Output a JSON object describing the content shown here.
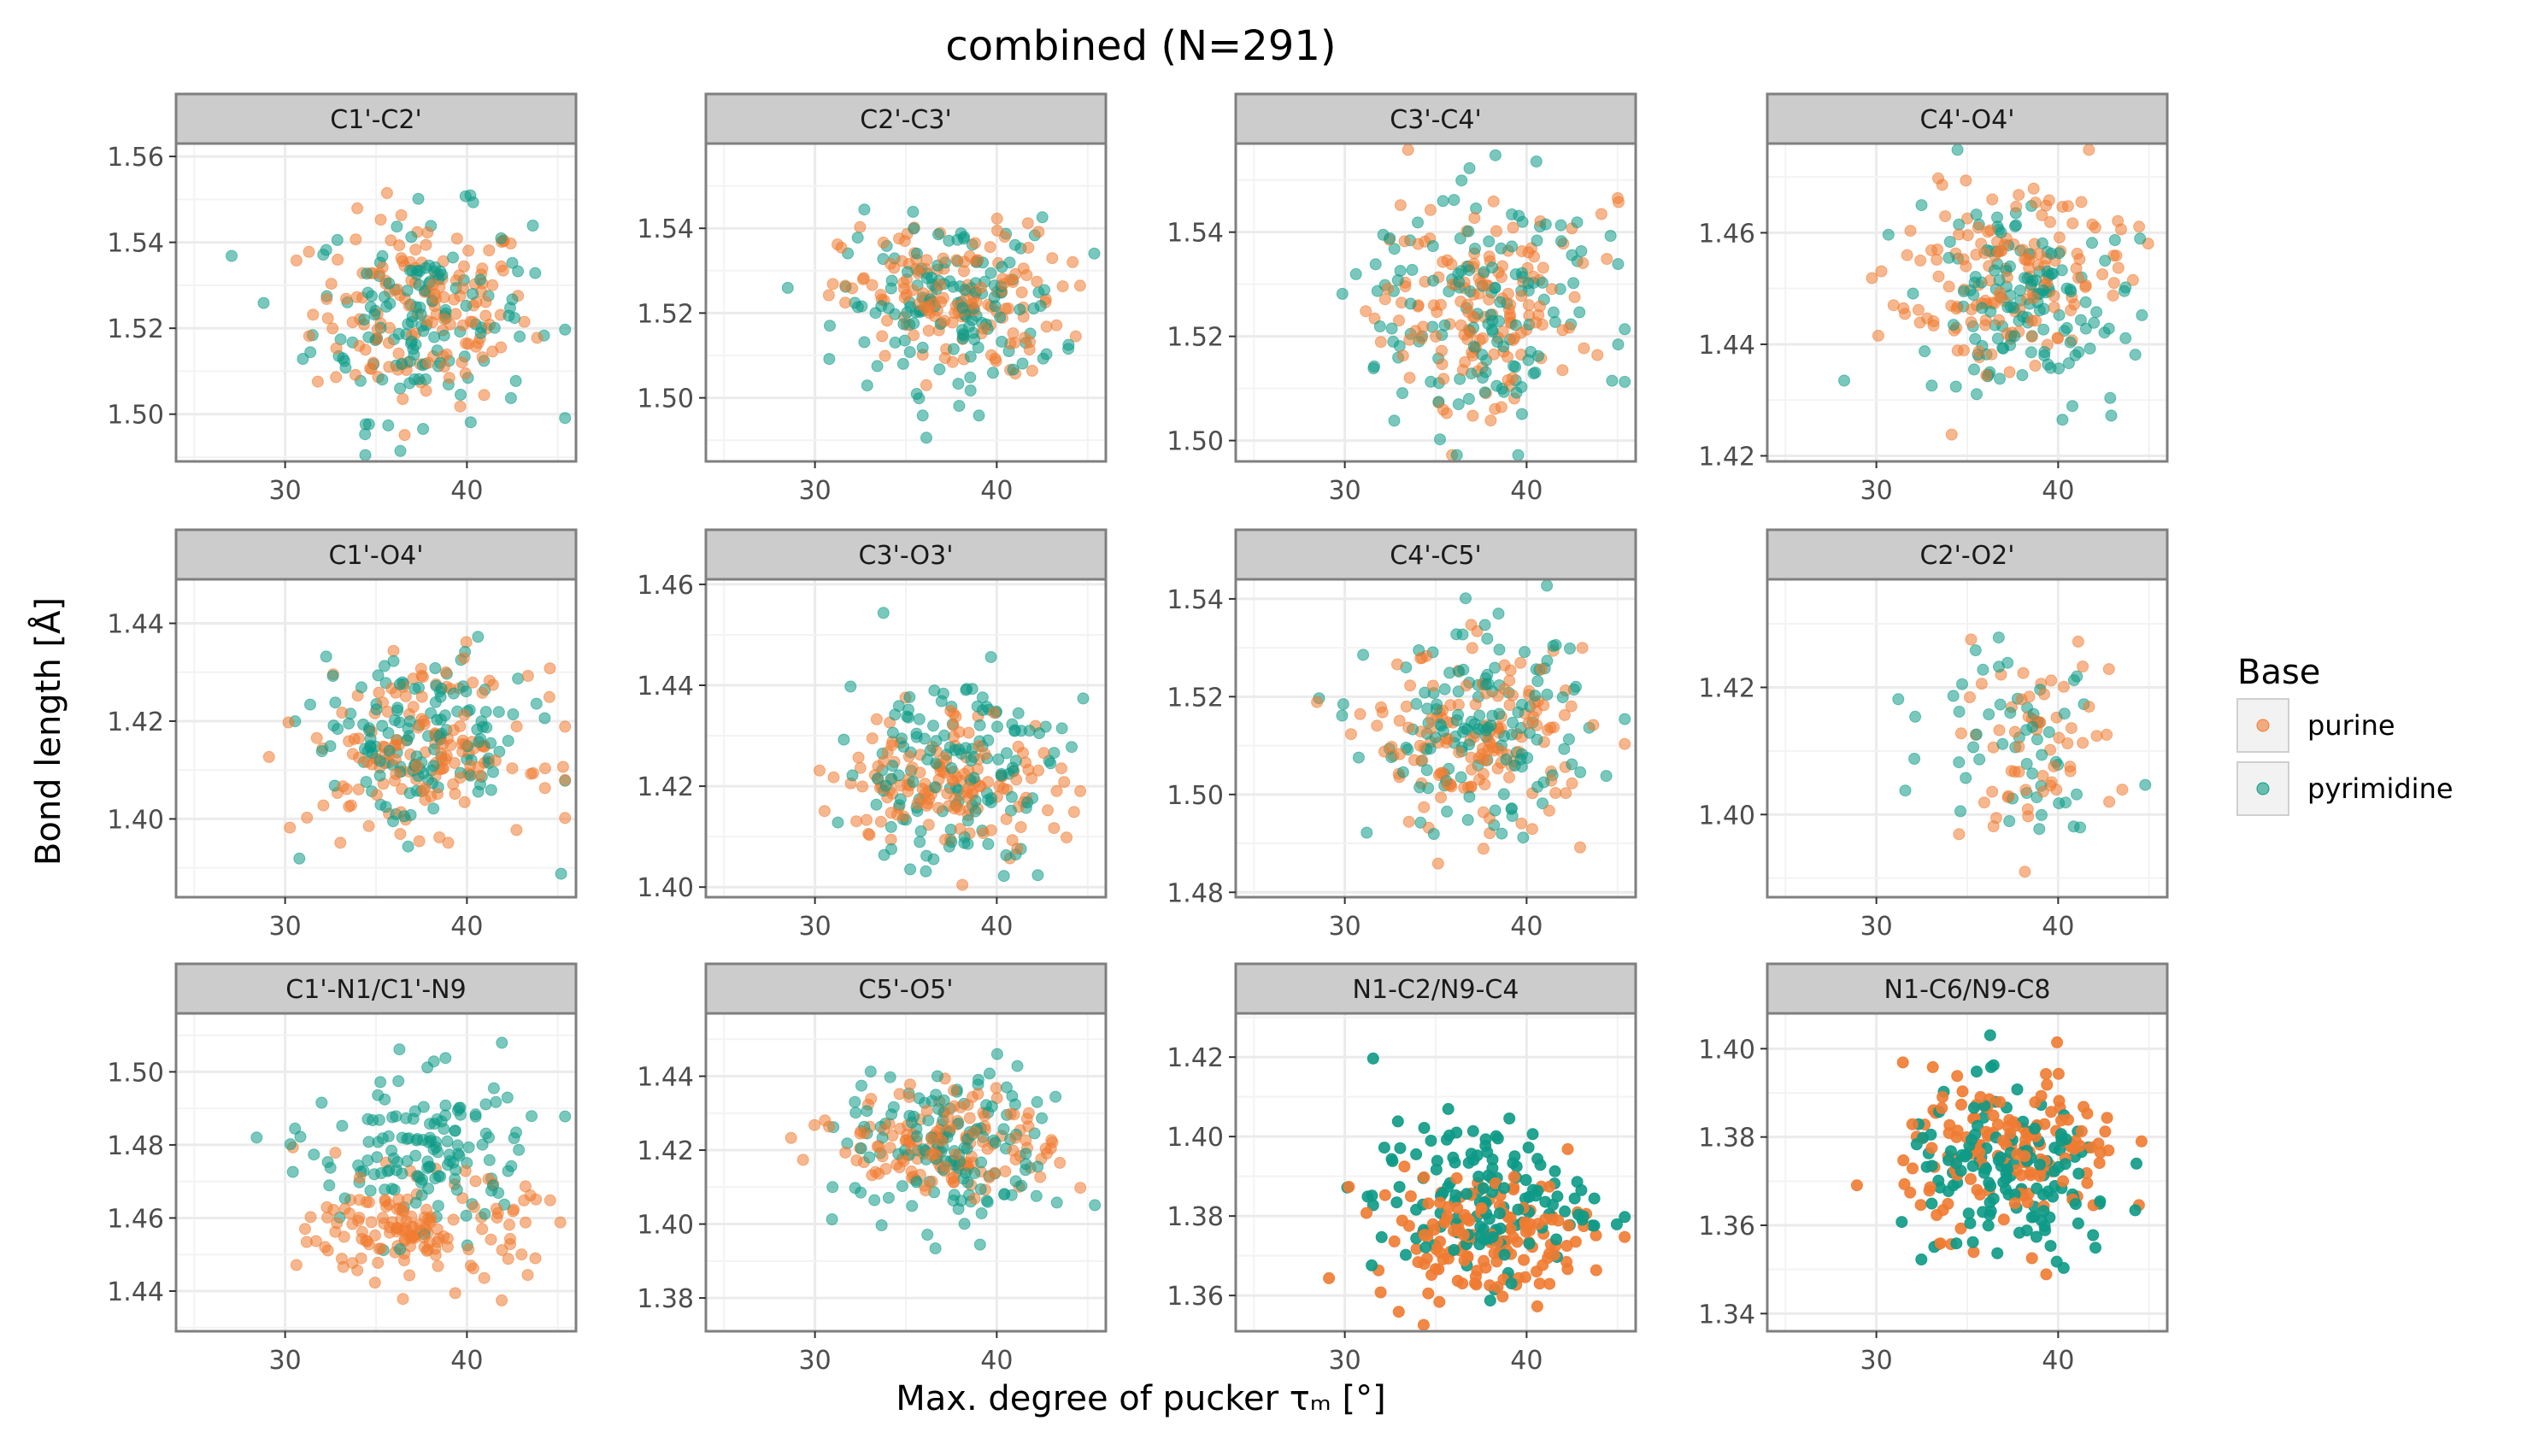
{
  "figure": {
    "title": "combined (N=291)",
    "xlabel": "Max. degree of pucker τₘ [°]",
    "ylabel": "Bond length [Å]"
  },
  "legend": {
    "title": "Base",
    "placement": "right",
    "items": [
      {
        "label": "purine",
        "color": "#f07b32"
      },
      {
        "label": "pyrimidine",
        "color": "#0d9a86"
      }
    ]
  },
  "chart_data": [
    {
      "type": "scatter",
      "title": "C1'-C2'",
      "xlim": [
        24,
        46
      ],
      "xticks": [
        30,
        40
      ],
      "ylim": [
        1.489,
        1.563
      ],
      "yticks": [
        1.5,
        1.52,
        1.54,
        1.56
      ],
      "xcenter": 37.5,
      "xsd": 3.0,
      "series": [
        {
          "name": "purine",
          "n": 150,
          "ycenter": 1.524,
          "ysd": 0.011
        },
        {
          "name": "pyrimidine",
          "n": 141,
          "ycenter": 1.523,
          "ysd": 0.012
        }
      ]
    },
    {
      "type": "scatter",
      "title": "C2'-C3'",
      "xlim": [
        24,
        46
      ],
      "xticks": [
        30,
        40
      ],
      "ylim": [
        1.485,
        1.56
      ],
      "yticks": [
        1.5,
        1.52,
        1.54
      ],
      "xcenter": 37.5,
      "xsd": 3.0,
      "series": [
        {
          "name": "purine",
          "n": 150,
          "ycenter": 1.523,
          "ysd": 0.009
        },
        {
          "name": "pyrimidine",
          "n": 141,
          "ycenter": 1.522,
          "ysd": 0.01
        }
      ]
    },
    {
      "type": "scatter",
      "title": "C3'-C4'",
      "xlim": [
        24,
        46
      ],
      "xticks": [
        30,
        40
      ],
      "ylim": [
        1.496,
        1.557
      ],
      "yticks": [
        1.5,
        1.52,
        1.54
      ],
      "xcenter": 37.5,
      "xsd": 3.0,
      "series": [
        {
          "name": "purine",
          "n": 150,
          "ycenter": 1.526,
          "ysd": 0.01
        },
        {
          "name": "pyrimidine",
          "n": 141,
          "ycenter": 1.526,
          "ysd": 0.011
        }
      ]
    },
    {
      "type": "scatter",
      "title": "C4'-O4'",
      "xlim": [
        24,
        46
      ],
      "xticks": [
        30,
        40
      ],
      "ylim": [
        1.419,
        1.476
      ],
      "yticks": [
        1.42,
        1.44,
        1.46
      ],
      "xcenter": 37.5,
      "xsd": 3.0,
      "series": [
        {
          "name": "purine",
          "n": 150,
          "ycenter": 1.451,
          "ysd": 0.008
        },
        {
          "name": "pyrimidine",
          "n": 141,
          "ycenter": 1.449,
          "ysd": 0.009
        }
      ]
    },
    {
      "type": "scatter",
      "title": "C1'-O4'",
      "xlim": [
        24,
        46
      ],
      "xticks": [
        30,
        40
      ],
      "ylim": [
        1.384,
        1.449
      ],
      "yticks": [
        1.4,
        1.42,
        1.44
      ],
      "xcenter": 37.5,
      "xsd": 3.0,
      "series": [
        {
          "name": "purine",
          "n": 150,
          "ycenter": 1.414,
          "ysd": 0.008
        },
        {
          "name": "pyrimidine",
          "n": 141,
          "ycenter": 1.416,
          "ysd": 0.009
        }
      ]
    },
    {
      "type": "scatter",
      "title": "C3'-O3'",
      "xlim": [
        24,
        46
      ],
      "xticks": [
        30,
        40
      ],
      "ylim": [
        1.398,
        1.461
      ],
      "yticks": [
        1.4,
        1.42,
        1.44,
        1.46
      ],
      "xcenter": 37.5,
      "xsd": 3.0,
      "series": [
        {
          "name": "purine",
          "n": 150,
          "ycenter": 1.421,
          "ysd": 0.007
        },
        {
          "name": "pyrimidine",
          "n": 141,
          "ycenter": 1.424,
          "ysd": 0.01
        }
      ]
    },
    {
      "type": "scatter",
      "title": "C4'-C5'",
      "xlim": [
        24,
        46
      ],
      "xticks": [
        30,
        40
      ],
      "ylim": [
        1.479,
        1.544
      ],
      "yticks": [
        1.48,
        1.5,
        1.52,
        1.54
      ],
      "xcenter": 37.5,
      "xsd": 3.0,
      "series": [
        {
          "name": "purine",
          "n": 150,
          "ycenter": 1.511,
          "ysd": 0.009
        },
        {
          "name": "pyrimidine",
          "n": 141,
          "ycenter": 1.512,
          "ysd": 0.01
        }
      ]
    },
    {
      "type": "scatter",
      "title": "C2'-O2'",
      "xlim": [
        24,
        46
      ],
      "xticks": [
        30,
        40
      ],
      "ylim": [
        1.387,
        1.437
      ],
      "yticks": [
        1.4,
        1.42
      ],
      "xcenter": 38.0,
      "xsd": 2.5,
      "series": [
        {
          "name": "purine",
          "n": 60,
          "ycenter": 1.411,
          "ysd": 0.007
        },
        {
          "name": "pyrimidine",
          "n": 55,
          "ycenter": 1.414,
          "ysd": 0.008
        }
      ]
    },
    {
      "type": "scatter",
      "title": "C1'-N1/C1'-N9",
      "xlim": [
        24,
        46
      ],
      "xticks": [
        30,
        40
      ],
      "ylim": [
        1.429,
        1.516
      ],
      "yticks": [
        1.44,
        1.46,
        1.48,
        1.5
      ],
      "xcenter": 37.5,
      "xsd": 3.0,
      "series": [
        {
          "name": "purine",
          "n": 150,
          "ycenter": 1.457,
          "ysd": 0.007
        },
        {
          "name": "pyrimidine",
          "n": 141,
          "ycenter": 1.478,
          "ysd": 0.011
        }
      ]
    },
    {
      "type": "scatter",
      "title": "C5'-O5'",
      "xlim": [
        24,
        46
      ],
      "xticks": [
        30,
        40
      ],
      "ylim": [
        1.371,
        1.457
      ],
      "yticks": [
        1.38,
        1.4,
        1.42,
        1.44
      ],
      "xcenter": 37.5,
      "xsd": 3.0,
      "series": [
        {
          "name": "purine",
          "n": 150,
          "ycenter": 1.422,
          "ysd": 0.007
        },
        {
          "name": "pyrimidine",
          "n": 141,
          "ycenter": 1.42,
          "ysd": 0.011
        }
      ]
    },
    {
      "type": "scatter",
      "title": "N1-C2/N9-C4",
      "xlim": [
        24,
        46
      ],
      "xticks": [
        30,
        40
      ],
      "ylim": [
        1.351,
        1.431
      ],
      "yticks": [
        1.36,
        1.38,
        1.4,
        1.42
      ],
      "xcenter": 37.5,
      "xsd": 3.0,
      "opaque": true,
      "series": [
        {
          "name": "purine",
          "n": 150,
          "ycenter": 1.375,
          "ysd": 0.008
        },
        {
          "name": "pyrimidine",
          "n": 141,
          "ycenter": 1.384,
          "ysd": 0.01
        }
      ]
    },
    {
      "type": "scatter",
      "title": "N1-C6/N9-C8",
      "xlim": [
        24,
        46
      ],
      "xticks": [
        30,
        40
      ],
      "ylim": [
        1.336,
        1.408
      ],
      "yticks": [
        1.34,
        1.36,
        1.38,
        1.4
      ],
      "xcenter": 37.5,
      "xsd": 3.0,
      "opaque": true,
      "series": [
        {
          "name": "purine",
          "n": 150,
          "ycenter": 1.377,
          "ysd": 0.009
        },
        {
          "name": "pyrimidine",
          "n": 141,
          "ycenter": 1.37,
          "ysd": 0.01
        }
      ]
    }
  ]
}
